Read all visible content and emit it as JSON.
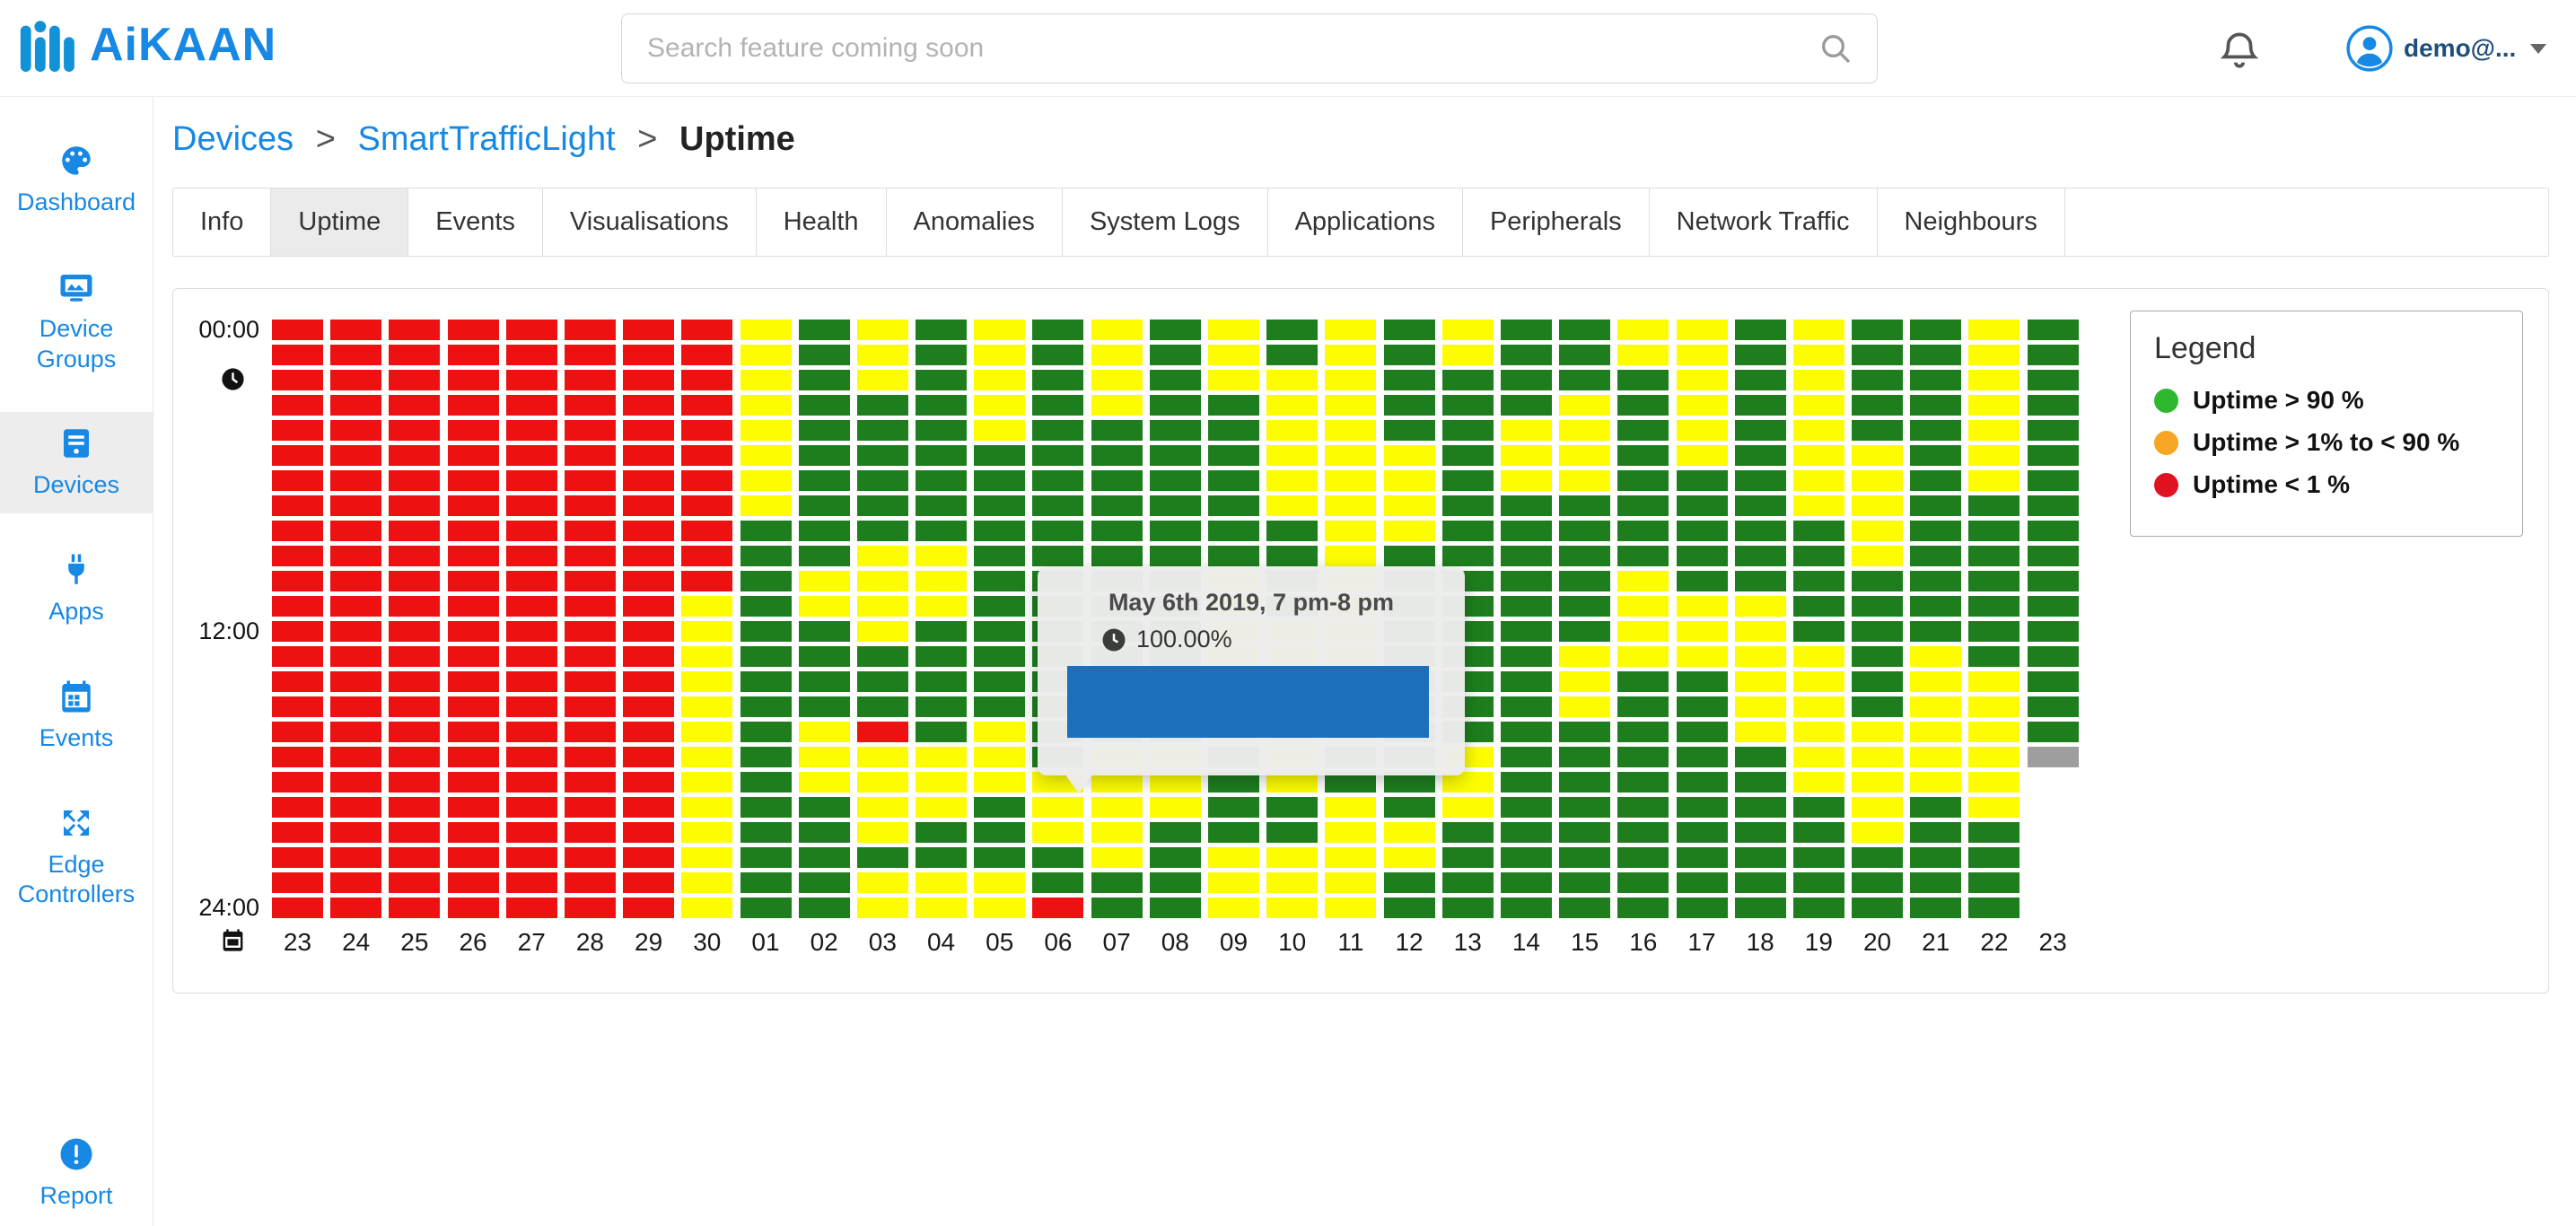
{
  "topbar": {
    "logo_text": "AiKAAN",
    "search_placeholder": "Search feature coming soon",
    "username": "demo@..."
  },
  "sidebar": {
    "active": "Devices",
    "items": [
      {
        "label": "Dashboard",
        "icon": "palette-icon"
      },
      {
        "label": "Device Groups",
        "icon": "device-groups-icon"
      },
      {
        "label": "Devices",
        "icon": "devices-icon"
      },
      {
        "label": "Apps",
        "icon": "plug-icon"
      },
      {
        "label": "Events",
        "icon": "calendar-icon"
      },
      {
        "label": "Edge Controllers",
        "icon": "edge-controllers-icon"
      },
      {
        "label": "Report",
        "icon": "report-icon"
      }
    ]
  },
  "breadcrumb": {
    "separator": ">",
    "items": [
      "Devices",
      "SmartTrafficLight",
      "Uptime"
    ]
  },
  "tabs": {
    "active": "Uptime",
    "labels": [
      "Info",
      "Uptime",
      "Events",
      "Visualisations",
      "Health",
      "Anomalies",
      "System Logs",
      "Applications",
      "Peripherals",
      "Network Traffic",
      "Neighbours"
    ]
  },
  "chart_data": {
    "type": "heatmap",
    "title": "Device uptime per hour",
    "x_labels": [
      "23",
      "24",
      "25",
      "26",
      "27",
      "28",
      "29",
      "30",
      "01",
      "02",
      "03",
      "04",
      "05",
      "06",
      "07",
      "08",
      "09",
      "10",
      "11",
      "12",
      "13",
      "14",
      "15",
      "16",
      "17",
      "18",
      "19",
      "20",
      "21",
      "22",
      "23"
    ],
    "y_labels": [
      "00:00",
      "12:00",
      "24:00"
    ],
    "rows": 24,
    "cell_color_legend": {
      "G": "uptime > 90%",
      "Y": "uptime 1%-90%",
      "R": "uptime < 1%",
      "X": "current/partial hour",
      "W": "no data yet"
    },
    "cell_colors": {
      "G": "#1e7e1e",
      "Y": "#fdfd00",
      "R": "#ee1111",
      "X": "#9e9e9e",
      "W": "transparent"
    },
    "columns": [
      "RRRRRRRRRRRRRRRRRRRRRRRR",
      "RRRRRRRRRRRRRRRRRRRRRRRR",
      "RRRRRRRRRRRRRRRRRRRRRRRR",
      "RRRRRRRRRRRRRRRRRRRRRRRR",
      "RRRRRRRRRRRRRRRRRRRRRRRR",
      "RRRRRRRRRRRRRRRRRRRRRRRR",
      "RRRRRRRRRRRRRRRRRRRRRRRR",
      "RRRRRRRRRRRYYYYYYYYYYYYY",
      "YYYYYYYYGGGGGGGGGGGGGGGG",
      "GGGGGGGGGGYYGGGGYYYGGGGG",
      "YYYGGGGGGYYYYGGGRYYYYGYY",
      "GGGGGGGGGYYYGGGGGYYYGGYY",
      "YYYYYGGGGGGGGGGGYYYGGGYY",
      "GGGGGGGGGGGGGGGGGGYYYGGR",
      "YYYYGGGGGGGGGGGGGYYYYYGG",
      "GGGGGGGGGGGGGGGGGYYYGGGG",
      "YYYGGGGGGGYYYYYYYGGGGYYY",
      "GGYYYYYYGGGGYYYYYYYGGYYY",
      "YYYYYYYYYYYYYYYYYGGYYYYY",
      "GGGGGYYYYGGGGGGGGGGGYYGG",
      "YYGGGGGGGGGGGGGGGYYYGGGG",
      "GGGGYYYGGGGGGGGGGGGGGGGG",
      "GGGYYYYGGGGGGYYYGGGGGGGG",
      "YYGGGGGGGGYYYYGGGGGGGGGG",
      "YYYYYYGGGGGYYYGGGGGGGGGG",
      "GGGGGGGGGGGYYYYYYGGGGGGG",
      "YYYYYYYYGGGGGYYYYYYGGGGG",
      "GGGGGYYYYYGGGGGGYYYYYGGG",
      "GGGGGGGGGGGGGYYYYYYGGGGG",
      "YYYYYYYGGGGGGGYYYYYYGGGG",
      "GGGGGGGGGGGGGGGGGXWWWWWW"
    ],
    "tooltip": {
      "title": "May 6th 2019, 7 pm-8 pm",
      "value": "100.00%",
      "bar_percent": 100,
      "bar_color": "#1c6fbb"
    }
  },
  "legend": {
    "title": "Legend",
    "items": [
      {
        "color": "#2eb82e",
        "label": "Uptime > 90 %"
      },
      {
        "color": "#f5a623",
        "label": "Uptime > 1% to < 90 %"
      },
      {
        "color": "#e0121f",
        "label": "Uptime < 1 %"
      }
    ]
  }
}
